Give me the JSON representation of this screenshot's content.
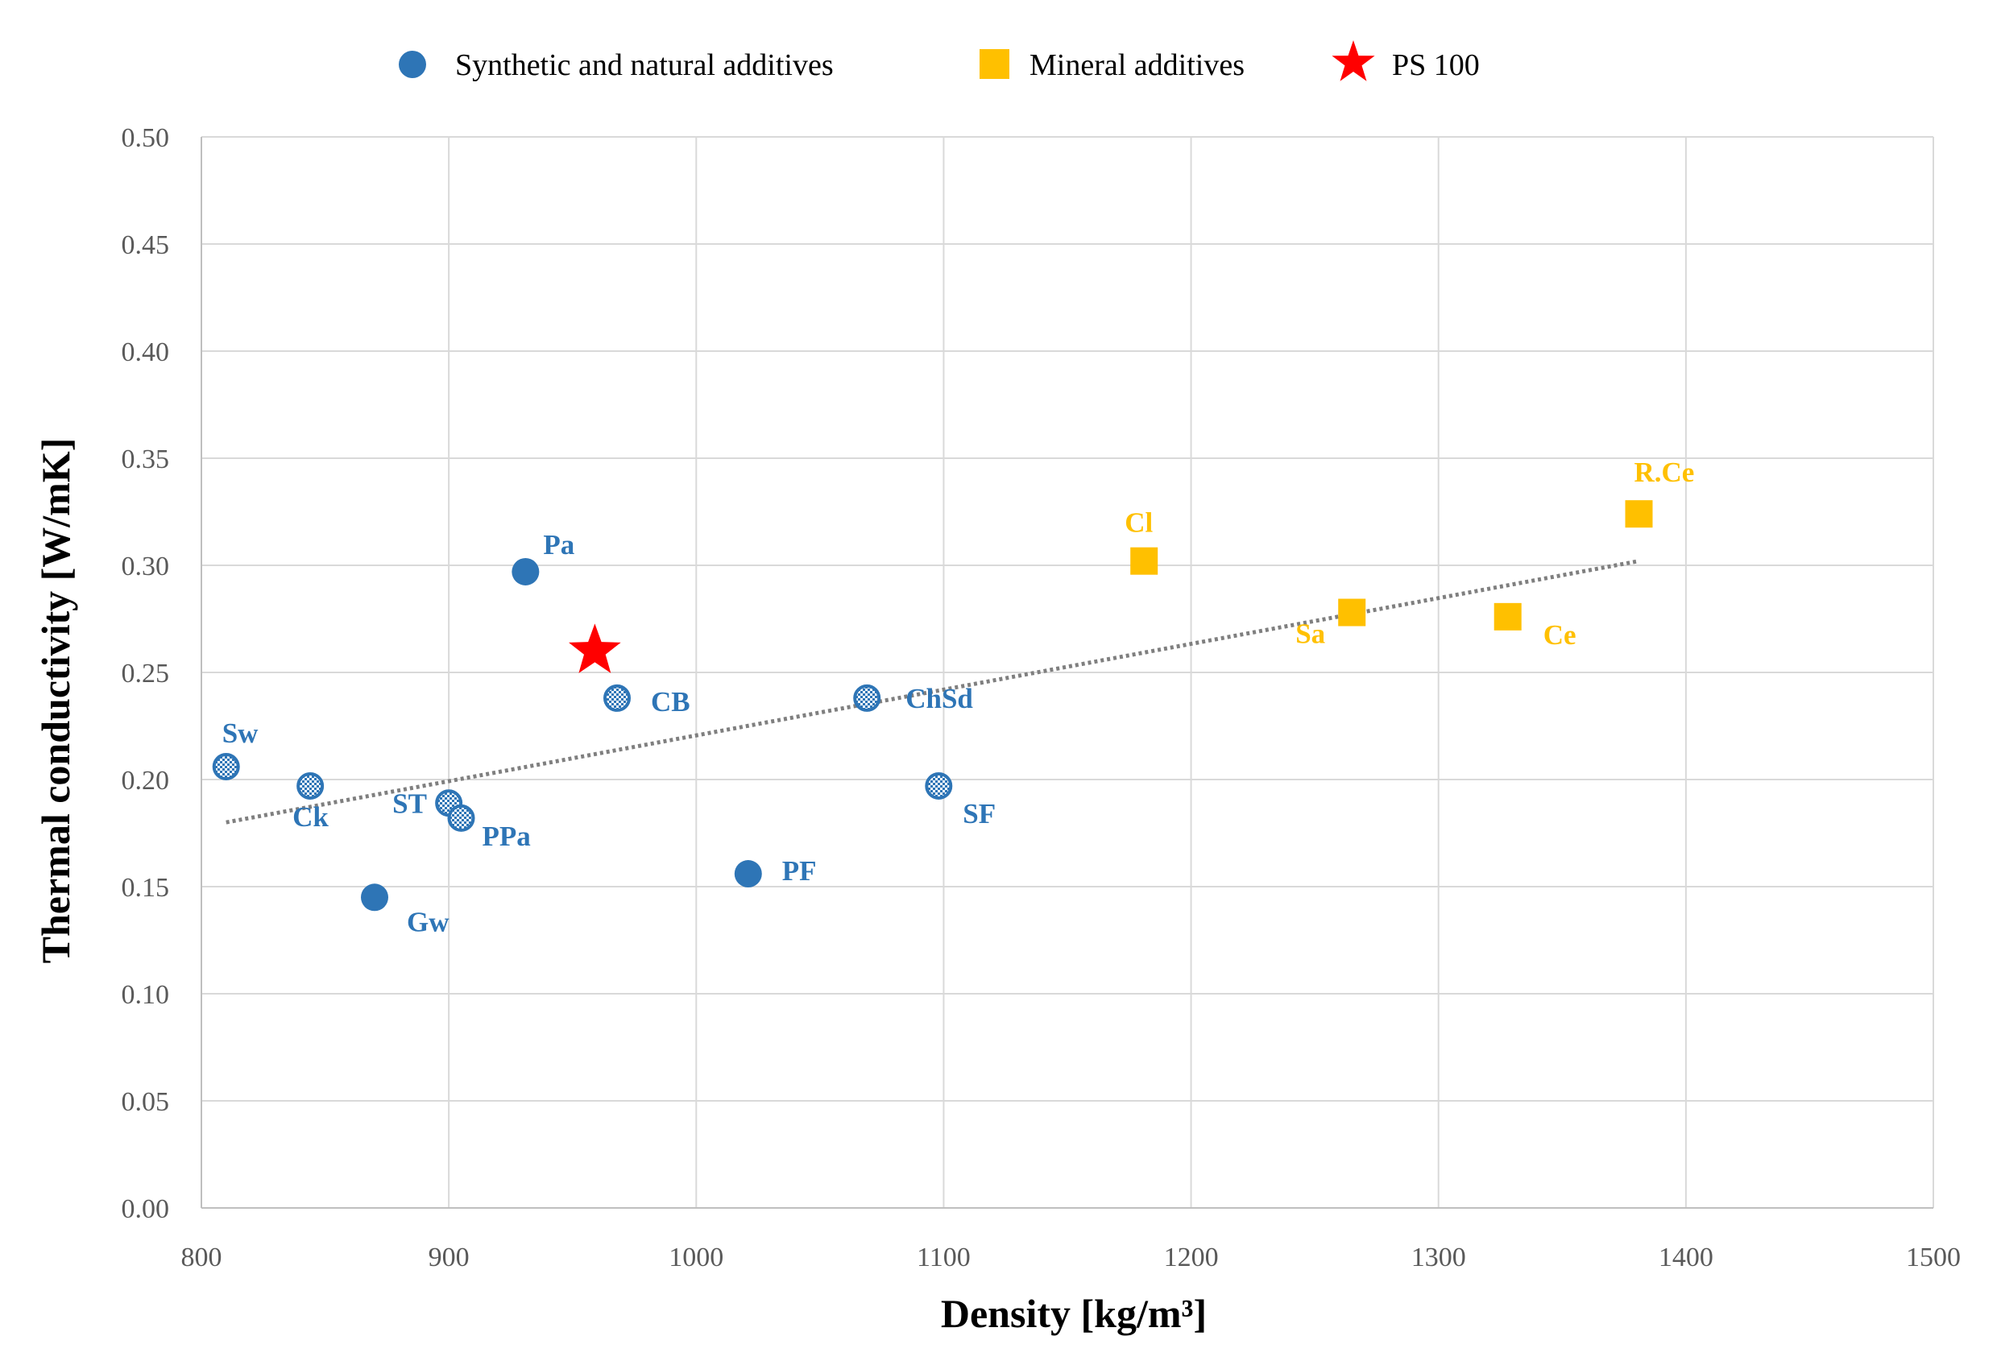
{
  "chart_data": {
    "type": "scatter",
    "title": "",
    "xlabel": "Density [kg/m³]",
    "ylabel": "Thermal conductivity [W/mK]",
    "xlim": [
      800,
      1500
    ],
    "ylim": [
      0.0,
      0.5
    ],
    "xticks": [
      "800",
      "900",
      "1000",
      "1100",
      "1200",
      "1300",
      "1400",
      "1500"
    ],
    "yticks": [
      "0.00",
      "0.05",
      "0.10",
      "0.15",
      "0.20",
      "0.25",
      "0.30",
      "0.35",
      "0.40",
      "0.45",
      "0.50"
    ],
    "grid": true,
    "legend_position": "top",
    "colors": {
      "blue": "#2e75b6",
      "yellow": "#ffc000",
      "red": "#ff0000",
      "trend": "#7f7f7f"
    },
    "series": [
      {
        "name": "Synthetic and natural additives",
        "marker": "circle",
        "color": "#2e75b6",
        "points": [
          {
            "label": "Pa",
            "x": 931,
            "y": 0.297,
            "fill": "solid"
          },
          {
            "label": "PF",
            "x": 1021,
            "y": 0.156,
            "fill": "solid"
          },
          {
            "label": "Gw",
            "x": 870,
            "y": 0.145,
            "fill": "solid"
          },
          {
            "label": "Sw",
            "x": 810,
            "y": 0.206,
            "fill": "pattern"
          },
          {
            "label": "Ck",
            "x": 844,
            "y": 0.197,
            "fill": "pattern"
          },
          {
            "label": "ST",
            "x": 900,
            "y": 0.189,
            "fill": "pattern"
          },
          {
            "label": "PPa",
            "x": 905,
            "y": 0.182,
            "fill": "pattern"
          },
          {
            "label": "CB",
            "x": 968,
            "y": 0.238,
            "fill": "pattern"
          },
          {
            "label": "ChSd",
            "x": 1069,
            "y": 0.238,
            "fill": "pattern"
          },
          {
            "label": "SF",
            "x": 1098,
            "y": 0.197,
            "fill": "pattern"
          }
        ]
      },
      {
        "name": "Mineral additives",
        "marker": "square",
        "color": "#ffc000",
        "points": [
          {
            "label": "Cl",
            "x": 1181,
            "y": 0.302
          },
          {
            "label": "Sa",
            "x": 1265,
            "y": 0.278
          },
          {
            "label": "Ce",
            "x": 1328,
            "y": 0.276
          },
          {
            "label": "R.Ce",
            "x": 1381,
            "y": 0.324
          }
        ]
      },
      {
        "name": "PS 100",
        "marker": "star",
        "color": "#ff0000",
        "points": [
          {
            "label": "",
            "x": 959,
            "y": 0.26
          }
        ]
      }
    ],
    "trendline": {
      "type": "linear",
      "style": "dotted",
      "x": [
        810,
        1381
      ],
      "y": [
        0.18,
        0.302
      ]
    }
  }
}
